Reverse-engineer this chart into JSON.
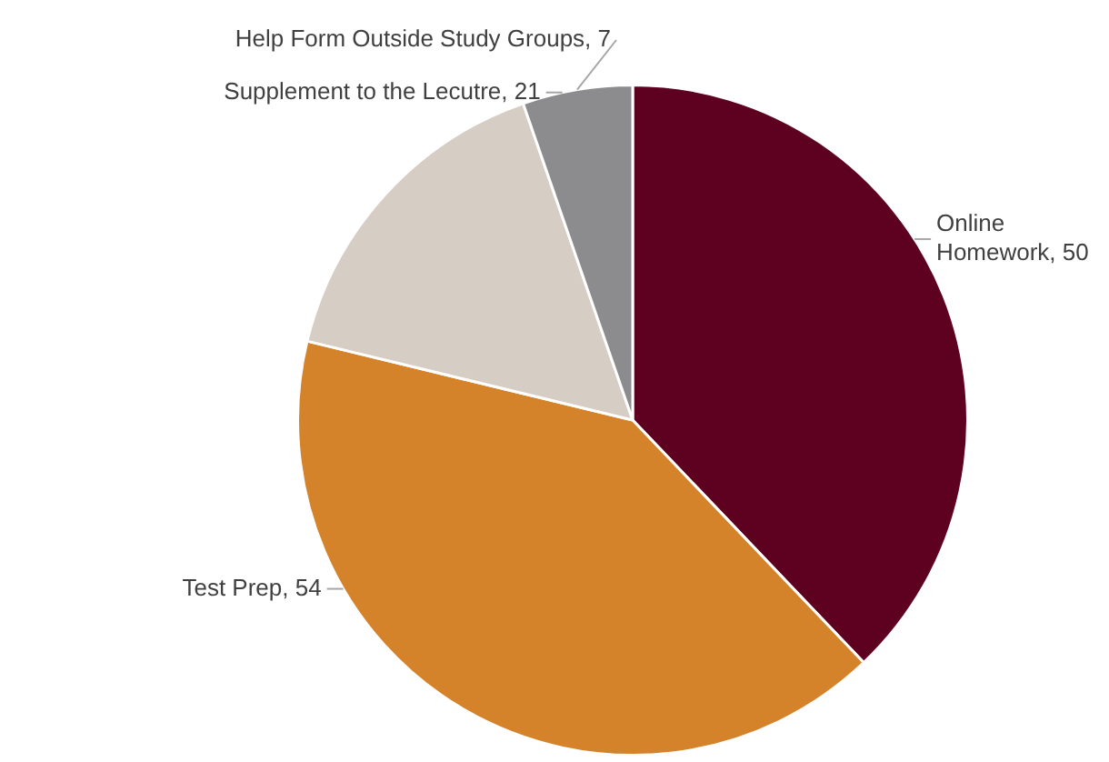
{
  "chart_data": {
    "type": "pie",
    "categories": [
      "Online Homework",
      "Test Prep",
      "Supplement to the Lecutre",
      "Help Form Outside Study Groups"
    ],
    "values": [
      50,
      54,
      21,
      7
    ],
    "colors": [
      "#5e0020",
      "#d5832b",
      "#d6cdc4",
      "#8c8c8e"
    ],
    "value_labels": [
      ", 50",
      ", 54",
      ", 21",
      ", 7"
    ]
  }
}
